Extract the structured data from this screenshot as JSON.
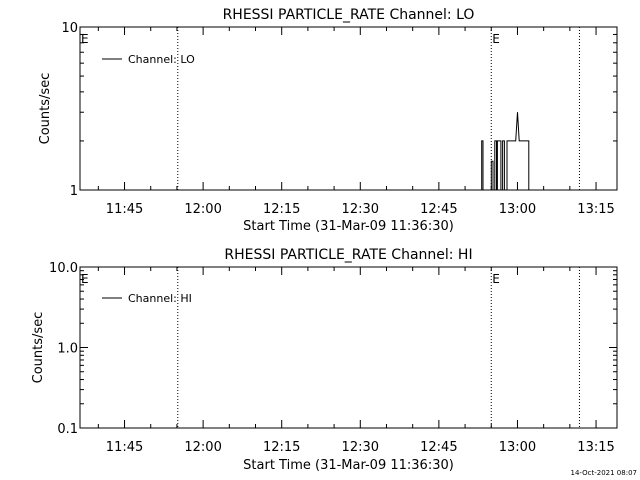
{
  "footer": {
    "timestamp": "14-Oct-2021 08:07"
  },
  "chart_data": [
    {
      "type": "line",
      "title": "RHESSI PARTICLE_RATE Channel: LO",
      "xlabel": "Start Time (31-Mar-09 11:36:30)",
      "ylabel": "Counts/sec",
      "yscale": "log",
      "xlim": [
        "11:36:30",
        "13:19:00"
      ],
      "ylim": [
        1,
        10
      ],
      "x_ticks": [
        "11:45",
        "12:00",
        "12:15",
        "12:30",
        "12:45",
        "13:00",
        "13:15"
      ],
      "y_ticks": [
        "1",
        "10"
      ],
      "legend": {
        "position": "top-left",
        "entries": [
          "Channel: LO"
        ]
      },
      "event_lines": [
        {
          "x": "11:55:10",
          "label": "E"
        },
        {
          "x": "12:55:00",
          "label": "E"
        },
        {
          "x": "13:11:50",
          "label": ""
        }
      ],
      "series": [
        {
          "name": "Channel: LO",
          "x": [
            "11:36:30",
            "12:53:10",
            "12:53:10",
            "12:53:25",
            "12:53:25",
            "12:53:40",
            "12:53:40",
            "12:55:00",
            "12:55:00",
            "12:55:20",
            "12:55:20",
            "12:55:40",
            "12:55:40",
            "12:56:00",
            "12:56:00",
            "12:56:10",
            "12:56:10",
            "12:56:30",
            "12:56:30",
            "12:56:50",
            "12:56:50",
            "12:57:10",
            "12:57:10",
            "12:57:30",
            "12:57:30",
            "12:58:00",
            "12:58:00",
            "12:58:10",
            "12:58:10",
            "12:58:30",
            "12:58:30",
            "12:58:50",
            "12:58:50",
            "12:59:40",
            "13:00:00",
            "13:00:20",
            "13:00:40",
            "13:02:10",
            "13:02:10",
            "13:02:30",
            "13:02:30",
            "13:06:10"
          ],
          "y": [
            1,
            1,
            2,
            2,
            1,
            1,
            1,
            1,
            1.5,
            1.5,
            1,
            1,
            2,
            2,
            1,
            1,
            2,
            2,
            2,
            2,
            1,
            1,
            2,
            2,
            1,
            1,
            2,
            2,
            2,
            2,
            2,
            2,
            2,
            2,
            3,
            2,
            2,
            2,
            1,
            1,
            1,
            1
          ]
        }
      ]
    },
    {
      "type": "line",
      "title": "RHESSI PARTICLE_RATE Channel: HI",
      "xlabel": "Start Time (31-Mar-09 11:36:30)",
      "ylabel": "Counts/sec",
      "yscale": "log",
      "xlim": [
        "11:36:30",
        "13:19:00"
      ],
      "ylim": [
        0.1,
        10
      ],
      "x_ticks": [
        "11:45",
        "12:00",
        "12:15",
        "12:30",
        "12:45",
        "13:00",
        "13:15"
      ],
      "y_ticks": [
        "0.1",
        "1.0",
        "10.0"
      ],
      "legend": {
        "position": "top-left",
        "entries": [
          "Channel: HI"
        ]
      },
      "event_lines": [
        {
          "x": "11:55:10",
          "label": "E"
        },
        {
          "x": "12:55:00",
          "label": "E"
        },
        {
          "x": "13:11:50",
          "label": ""
        }
      ],
      "series": [
        {
          "name": "Channel: HI",
          "x": [],
          "y": []
        }
      ]
    }
  ]
}
